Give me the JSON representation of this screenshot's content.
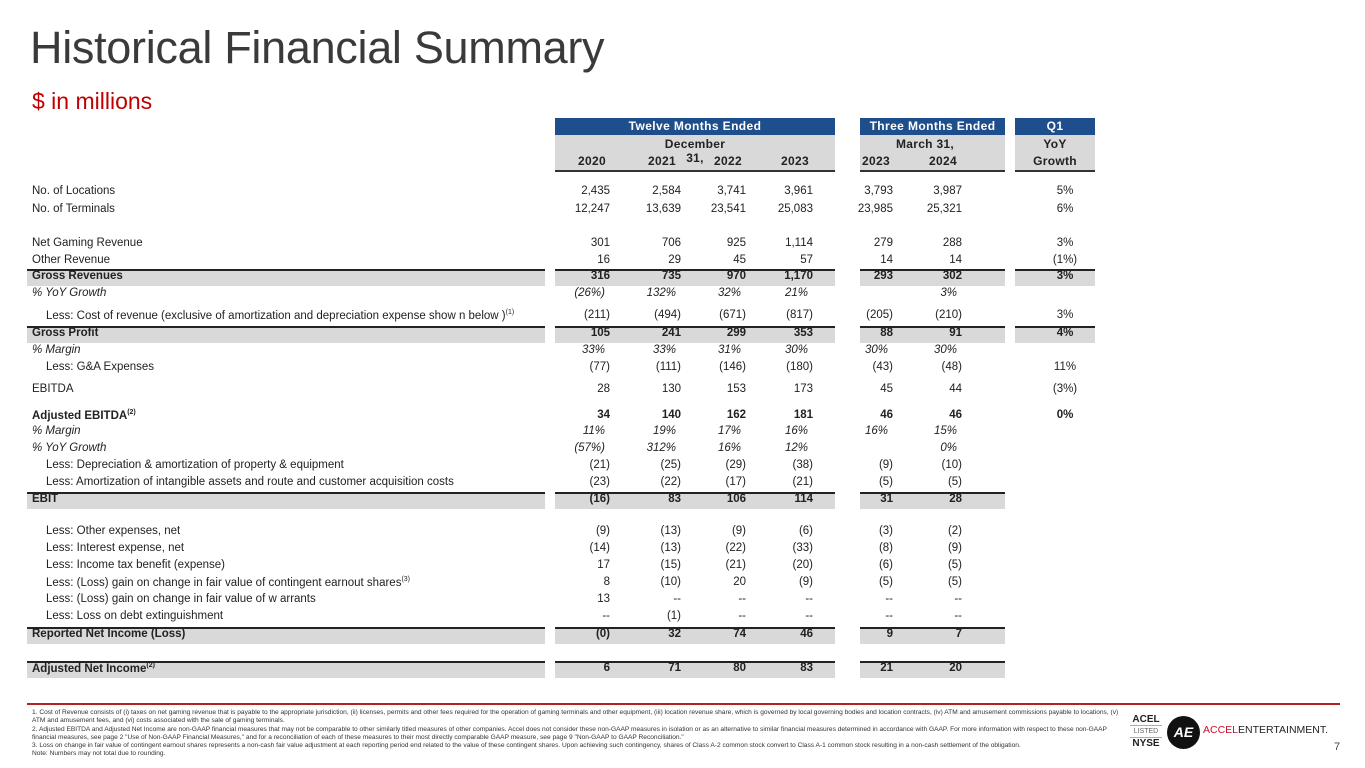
{
  "title": "Historical Financial Summary",
  "subtitle": "$ in millions",
  "header": {
    "twelve_months": "Twelve Months Ended",
    "three_months": "Three Months Ended",
    "q1": "Q1",
    "dec31": "December 31,",
    "mar31": "March 31,",
    "yoy": "YoY",
    "growth": "Growth",
    "years": [
      "2020",
      "2021",
      "2022",
      "2023",
      "2023",
      "2024"
    ]
  },
  "rows": [
    {
      "label": "No. of Locations",
      "values": [
        "2,435",
        "2,584",
        "3,741",
        "3,961",
        "3,793",
        "3,987"
      ],
      "growth": "5%"
    },
    {
      "label": "No. of Terminals",
      "values": [
        "12,247",
        "13,639",
        "23,541",
        "25,083",
        "23,985",
        "25,321"
      ],
      "growth": "6%"
    },
    {
      "label": "Net Gaming Revenue",
      "values": [
        "301",
        "706",
        "925",
        "1,114",
        "279",
        "288"
      ],
      "growth": "3%"
    },
    {
      "label": "Other Revenue",
      "values": [
        "16",
        "29",
        "45",
        "57",
        "14",
        "14"
      ],
      "growth": "(1%)"
    },
    {
      "label": "Gross Revenues",
      "values": [
        "316",
        "735",
        "970",
        "1,170",
        "293",
        "302"
      ],
      "growth": "3%",
      "style": "total"
    },
    {
      "label": "% YoY Growth",
      "values": [
        "(26%)",
        "132%",
        "32%",
        "21%",
        "",
        "3%"
      ],
      "growth": "",
      "style": "italic"
    },
    {
      "label": "Less: Cost of revenue (exclusive of amortization and depreciation expense show n below )",
      "sup": "(1)",
      "values": [
        "(211)",
        "(494)",
        "(671)",
        "(817)",
        "(205)",
        "(210)"
      ],
      "growth": "3%",
      "style": "indent"
    },
    {
      "label": "Gross Profit",
      "values": [
        "105",
        "241",
        "299",
        "353",
        "88",
        "91"
      ],
      "growth": "4%",
      "style": "total"
    },
    {
      "label": "% Margin",
      "values": [
        "33%",
        "33%",
        "31%",
        "30%",
        "30%",
        "30%"
      ],
      "growth": "",
      "style": "italic"
    },
    {
      "label": "Less: G&A Expenses",
      "values": [
        "(77)",
        "(111)",
        "(146)",
        "(180)",
        "(43)",
        "(48)"
      ],
      "growth": "11%",
      "style": "indent"
    },
    {
      "label": "EBITDA",
      "values": [
        "28",
        "130",
        "153",
        "173",
        "45",
        "44"
      ],
      "growth": "(3%)"
    },
    {
      "label": "Adjusted EBITDA",
      "sup": "(2)",
      "values": [
        "34",
        "140",
        "162",
        "181",
        "46",
        "46"
      ],
      "growth": "0%",
      "style": "bold"
    },
    {
      "label": "% Margin",
      "values": [
        "11%",
        "19%",
        "17%",
        "16%",
        "16%",
        "15%"
      ],
      "growth": "",
      "style": "italic"
    },
    {
      "label": "% YoY Growth",
      "values": [
        "(57%)",
        "312%",
        "16%",
        "12%",
        "",
        "0%"
      ],
      "growth": "",
      "style": "italic"
    },
    {
      "label": "Less: Depreciation & amortization of property & equipment",
      "values": [
        "(21)",
        "(25)",
        "(29)",
        "(38)",
        "(9)",
        "(10)"
      ],
      "growth": "",
      "style": "indent"
    },
    {
      "label": "Less: Amortization of intangible assets and route and customer acquisition costs",
      "values": [
        "(23)",
        "(22)",
        "(17)",
        "(21)",
        "(5)",
        "(5)"
      ],
      "growth": "",
      "style": "indent"
    },
    {
      "label": "EBIT",
      "values": [
        "(16)",
        "83",
        "106",
        "114",
        "31",
        "28"
      ],
      "growth": "",
      "style": "total-nogrowth"
    },
    {
      "label": "Less: Other expenses, net",
      "values": [
        "(9)",
        "(13)",
        "(9)",
        "(6)",
        "(3)",
        "(2)"
      ],
      "growth": "",
      "style": "indent"
    },
    {
      "label": "Less: Interest expense, net",
      "values": [
        "(14)",
        "(13)",
        "(22)",
        "(33)",
        "(8)",
        "(9)"
      ],
      "growth": "",
      "style": "indent"
    },
    {
      "label": "Less: Income tax benefit (expense)",
      "values": [
        "17",
        "(15)",
        "(21)",
        "(20)",
        "(6)",
        "(5)"
      ],
      "growth": "",
      "style": "indent"
    },
    {
      "label": "Less: (Loss) gain on change in fair value of contingent earnout shares",
      "sup": "(3)",
      "values": [
        "8",
        "(10)",
        "20",
        "(9)",
        "(5)",
        "(5)"
      ],
      "growth": "",
      "style": "indent"
    },
    {
      "label": "Less: (Loss) gain on change in fair value of w arrants",
      "values": [
        "13",
        "--",
        "--",
        "--",
        "--",
        "--"
      ],
      "growth": "",
      "style": "indent"
    },
    {
      "label": "Less: Loss on debt extinguishment",
      "values": [
        "--",
        "(1)",
        "--",
        "--",
        "--",
        "--"
      ],
      "growth": "",
      "style": "indent"
    },
    {
      "label": "Reported Net Income (Loss)",
      "values": [
        "(0)",
        "32",
        "74",
        "46",
        "9",
        "7"
      ],
      "growth": "",
      "style": "total-nogrowth"
    },
    {
      "label": "Adjusted Net Income",
      "sup": "(2)",
      "values": [
        "6",
        "71",
        "80",
        "83",
        "21",
        "20"
      ],
      "growth": "",
      "style": "total-nogrowth"
    }
  ],
  "footnotes": [
    "1.  Cost of Revenue consists of (i) taxes on net gaming revenue that is payable to the appropriate jurisdiction, (ii) licenses, permits and other fees required for the operation of gaming terminals and other equipment, (iii) location revenue share, which is governed by local governing bodies and location contracts, (iv) ATM and amusement commissions payable to locations, (v) ATM and amusement fees, and (vi) costs associated with the sale of gaming terminals.",
    "2.  Adjusted EBITDA and Adjusted Net Income are non-GAAP financial measures that may not be comparable to other similarly titled measures of other companies. Accel does not consider these non-GAAP measures in isolation or as an alternative to similar financial measures determined in accordance with GAAP. For more information with respect to these non-GAAP financial measures, see page 2 \"Use of Non-GAAP Financial Measures,\" and for a reconciliation of each of these measures to their most directly comparable GAAP measure, see page 9 \"Non-GAAP to GAAP Reconciliation.\"",
    "3.  Loss on change in fair value of contingent earnout shares represents a non-cash fair value adjustment at each reporting period end related to the value of these contingent shares. Upon achieving such contingency, shares of Class A-2 common stock convert to Class A-1 common stock resulting in a non-cash settlement of the obligation.",
    "Note: Numbers may not total due to rounding."
  ],
  "logo": {
    "ticker": "ACEL",
    "listed": "LISTED",
    "exchange": "NYSE",
    "mark": "AE",
    "brand_a": "ACCEL",
    "brand_b": "ENTERTAINMENT."
  },
  "page_number": "7",
  "colors": {
    "header_blue": "#1f4e8c",
    "subtitle_red": "#c00000",
    "band_gray": "#d9d9d9",
    "rule_red": "#b22222"
  }
}
